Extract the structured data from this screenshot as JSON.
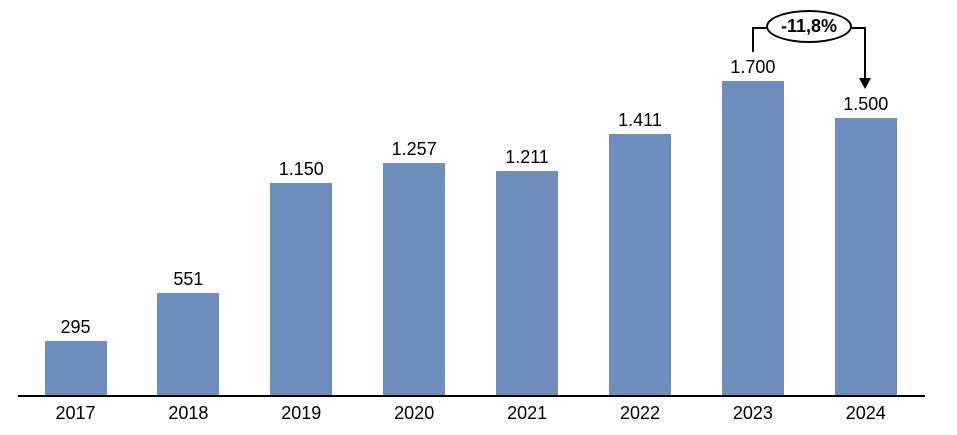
{
  "chart_data": {
    "type": "bar",
    "title": "",
    "xlabel": "",
    "ylabel": "",
    "categories": [
      "2017",
      "2018",
      "2019",
      "2020",
      "2021",
      "2022",
      "2023",
      "2024"
    ],
    "values": [
      295,
      551,
      1150,
      1257,
      1211,
      1411,
      1700,
      1500
    ],
    "value_labels": [
      "295",
      "551",
      "1.150",
      "1.257",
      "1.211",
      "1.411",
      "1.700",
      "1.500"
    ],
    "ylim": [
      0,
      2100
    ],
    "grid": false,
    "legend": false,
    "bar_color": "#6E8EBE",
    "axis_color": "#000000",
    "label_color": "#000000",
    "annotation": {
      "label": "-11,8%",
      "shape": "ellipse",
      "from_category": "2023",
      "to_category": "2024",
      "connector_color": "#000000",
      "fill_color": "#ffffff"
    }
  }
}
